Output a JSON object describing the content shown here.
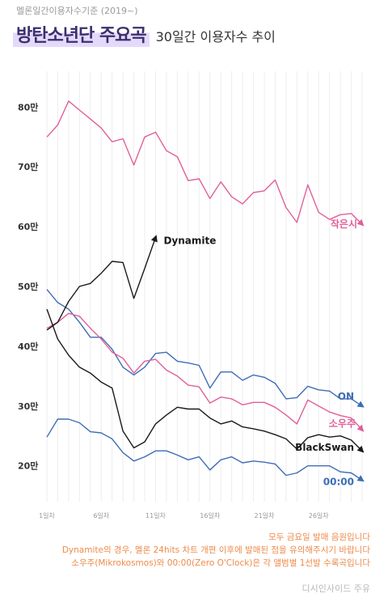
{
  "header": {
    "top_note": "멜론일간이용자수기준 (2019~)",
    "title": "방탄소년단 주요곡",
    "subtitle": "30일간 이용자수 추이"
  },
  "notes": [
    "모두 금요일 발매 음원입니다",
    "Dynamite의 경우, 멜론 24hits 차트 개편 이후에 발매된 점을 유의해주시기 바랍니다",
    "소우주(Mikrokosmos)와 00:00(Zero O'Clock)은 각 앨범별 1선발 수록곡입니다"
  ],
  "credit": "디시인사이드 주유",
  "chart_data": {
    "type": "line",
    "title": "",
    "xlabel": "",
    "ylabel": "",
    "x_ticks": [
      "1일차",
      "6일차",
      "11일차",
      "16일차",
      "21일차",
      "26일차"
    ],
    "x_tick_days": [
      1,
      6,
      11,
      16,
      21,
      26
    ],
    "y_ticks": [
      "20만",
      "30만",
      "40만",
      "50만",
      "60만",
      "70만",
      "80만"
    ],
    "y_tick_values": [
      200000,
      300000,
      400000,
      500000,
      600000,
      700000,
      800000
    ],
    "xlim": [
      1,
      30
    ],
    "ylim": [
      140000,
      860000
    ],
    "grid": true,
    "legend": "labels at line ends",
    "series": [
      {
        "name": "작은시",
        "color": "#e0609a",
        "y": [
          750000,
          770000,
          810000,
          795000,
          780000,
          765000,
          742000,
          747000,
          703000,
          750000,
          758000,
          727000,
          717000,
          677000,
          680000,
          647000,
          675000,
          650000,
          638000,
          657000,
          660000,
          678000,
          632000,
          607000,
          670000,
          624000,
          612000,
          620000,
          622000,
          604000
        ]
      },
      {
        "name": "ON",
        "color": "#3f6db5",
        "y": [
          495000,
          473000,
          462000,
          440000,
          415000,
          415000,
          395000,
          365000,
          352000,
          365000,
          388000,
          390000,
          375000,
          372000,
          368000,
          330000,
          357000,
          357000,
          343000,
          352000,
          348000,
          338000,
          312000,
          314000,
          333000,
          327000,
          325000,
          312000,
          312000,
          300000
        ]
      },
      {
        "name": "소우주",
        "color": "#e0609a",
        "y": [
          430000,
          440000,
          455000,
          450000,
          430000,
          412000,
          390000,
          380000,
          355000,
          375000,
          378000,
          360000,
          350000,
          335000,
          332000,
          305000,
          315000,
          312000,
          302000,
          306000,
          306000,
          298000,
          285000,
          270000,
          310000,
          300000,
          290000,
          284000,
          280000,
          260000
        ]
      },
      {
        "name": "BlackSwan",
        "color": "#1a1a1a",
        "y": [
          462000,
          412000,
          385000,
          365000,
          355000,
          340000,
          330000,
          258000,
          230000,
          240000,
          270000,
          285000,
          298000,
          295000,
          295000,
          280000,
          270000,
          275000,
          265000,
          262000,
          258000,
          252000,
          245000,
          228000,
          247000,
          252000,
          248000,
          250000,
          243000,
          225000
        ]
      },
      {
        "name": "00:00",
        "color": "#3f6db5",
        "y": [
          248000,
          278000,
          278000,
          272000,
          257000,
          255000,
          245000,
          222000,
          208000,
          215000,
          225000,
          225000,
          218000,
          210000,
          215000,
          193000,
          210000,
          215000,
          205000,
          208000,
          206000,
          203000,
          184000,
          188000,
          200000,
          200000,
          200000,
          190000,
          188000,
          176000
        ]
      },
      {
        "name": "Dynamite",
        "color": "#1a1a1a",
        "y": [
          427000,
          440000,
          475000,
          500000,
          505000,
          522000,
          542000,
          540000,
          480000,
          530000,
          582000
        ]
      }
    ]
  }
}
